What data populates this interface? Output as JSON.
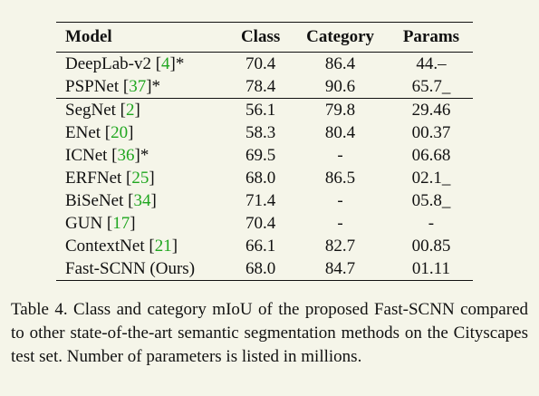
{
  "table": {
    "headers": [
      "Model",
      "Class",
      "Category",
      "Params"
    ],
    "rows": [
      {
        "name": "DeepLab-v2 [",
        "ref": "4",
        "suffix": "]*",
        "class": "70.4",
        "category": "86.4",
        "params": "44.–"
      },
      {
        "name": "PSPNet [",
        "ref": "37",
        "suffix": "]*",
        "class": "78.4",
        "category": "90.6",
        "params": "65.7_"
      },
      {
        "name": "SegNet [",
        "ref": "2",
        "suffix": "]",
        "class": "56.1",
        "category": "79.8",
        "params": "29.46"
      },
      {
        "name": "ENet [",
        "ref": "20",
        "suffix": "]",
        "class": "58.3",
        "category": "80.4",
        "params": "00.37"
      },
      {
        "name": "ICNet [",
        "ref": "36",
        "suffix": "]*",
        "class": "69.5",
        "category": "-",
        "params": "06.68"
      },
      {
        "name": "ERFNet [",
        "ref": "25",
        "suffix": "]",
        "class": "68.0",
        "category": "86.5",
        "params": "02.1_"
      },
      {
        "name": "BiSeNet [",
        "ref": "34",
        "suffix": "]",
        "class": "71.4",
        "category": "-",
        "params": "05.8_"
      },
      {
        "name": "GUN [",
        "ref": "17",
        "suffix": "]",
        "class": "70.4",
        "category": "-",
        "params": "-"
      },
      {
        "name": "ContextNet [",
        "ref": "21",
        "suffix": "]",
        "class": "66.1",
        "category": "82.7",
        "params": "00.85"
      },
      {
        "name": "Fast-SCNN (Ours)",
        "ref": "",
        "suffix": "",
        "class": "68.0",
        "category": "84.7",
        "params": "01.11"
      }
    ]
  },
  "caption": "Table 4. Class and category mIoU of the proposed Fast-SCNN compared to other state-of-the-art semantic segmentation methods on the Cityscapes test set. Number of parameters is listed in millions."
}
